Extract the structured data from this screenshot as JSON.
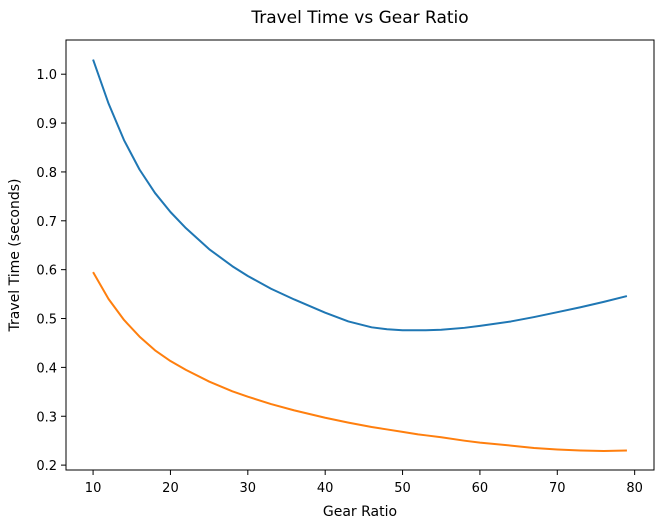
{
  "chart_data": {
    "type": "line",
    "title": "Travel Time vs Gear Ratio",
    "xlabel": "Gear Ratio",
    "ylabel": "Travel Time (seconds)",
    "xlim": [
      6.5,
      82.5
    ],
    "ylim": [
      0.19,
      1.07
    ],
    "xticks": [
      10,
      20,
      30,
      40,
      50,
      60,
      70,
      80
    ],
    "yticks": [
      0.2,
      0.3,
      0.4,
      0.5,
      0.6,
      0.7,
      0.8,
      0.9,
      1.0
    ],
    "xtick_labels": [
      "10",
      "20",
      "30",
      "40",
      "50",
      "60",
      "70",
      "80"
    ],
    "ytick_labels": [
      "0.2",
      "0.3",
      "0.4",
      "0.5",
      "0.6",
      "0.7",
      "0.8",
      "0.9",
      "1.0"
    ],
    "grid": false,
    "x": [
      10,
      12,
      14,
      16,
      18,
      20,
      22,
      25,
      28,
      30,
      33,
      36,
      40,
      43,
      46,
      48,
      50,
      52,
      53,
      55,
      58,
      60,
      64,
      67,
      70,
      73,
      76,
      79
    ],
    "series": [
      {
        "color": "#1f77b4",
        "values": [
          1.03,
          0.94,
          0.865,
          0.805,
          0.757,
          0.718,
          0.685,
          0.642,
          0.607,
          0.587,
          0.561,
          0.539,
          0.512,
          0.494,
          0.482,
          0.478,
          0.476,
          0.476,
          0.476,
          0.477,
          0.481,
          0.485,
          0.494,
          0.503,
          0.513,
          0.523,
          0.534,
          0.546
        ]
      },
      {
        "color": "#ff7f0e",
        "values": [
          0.595,
          0.54,
          0.497,
          0.463,
          0.435,
          0.413,
          0.395,
          0.371,
          0.351,
          0.34,
          0.325,
          0.312,
          0.297,
          0.287,
          0.278,
          0.273,
          0.268,
          0.263,
          0.261,
          0.257,
          0.25,
          0.246,
          0.24,
          0.235,
          0.232,
          0.23,
          0.229,
          0.23
        ]
      }
    ]
  }
}
